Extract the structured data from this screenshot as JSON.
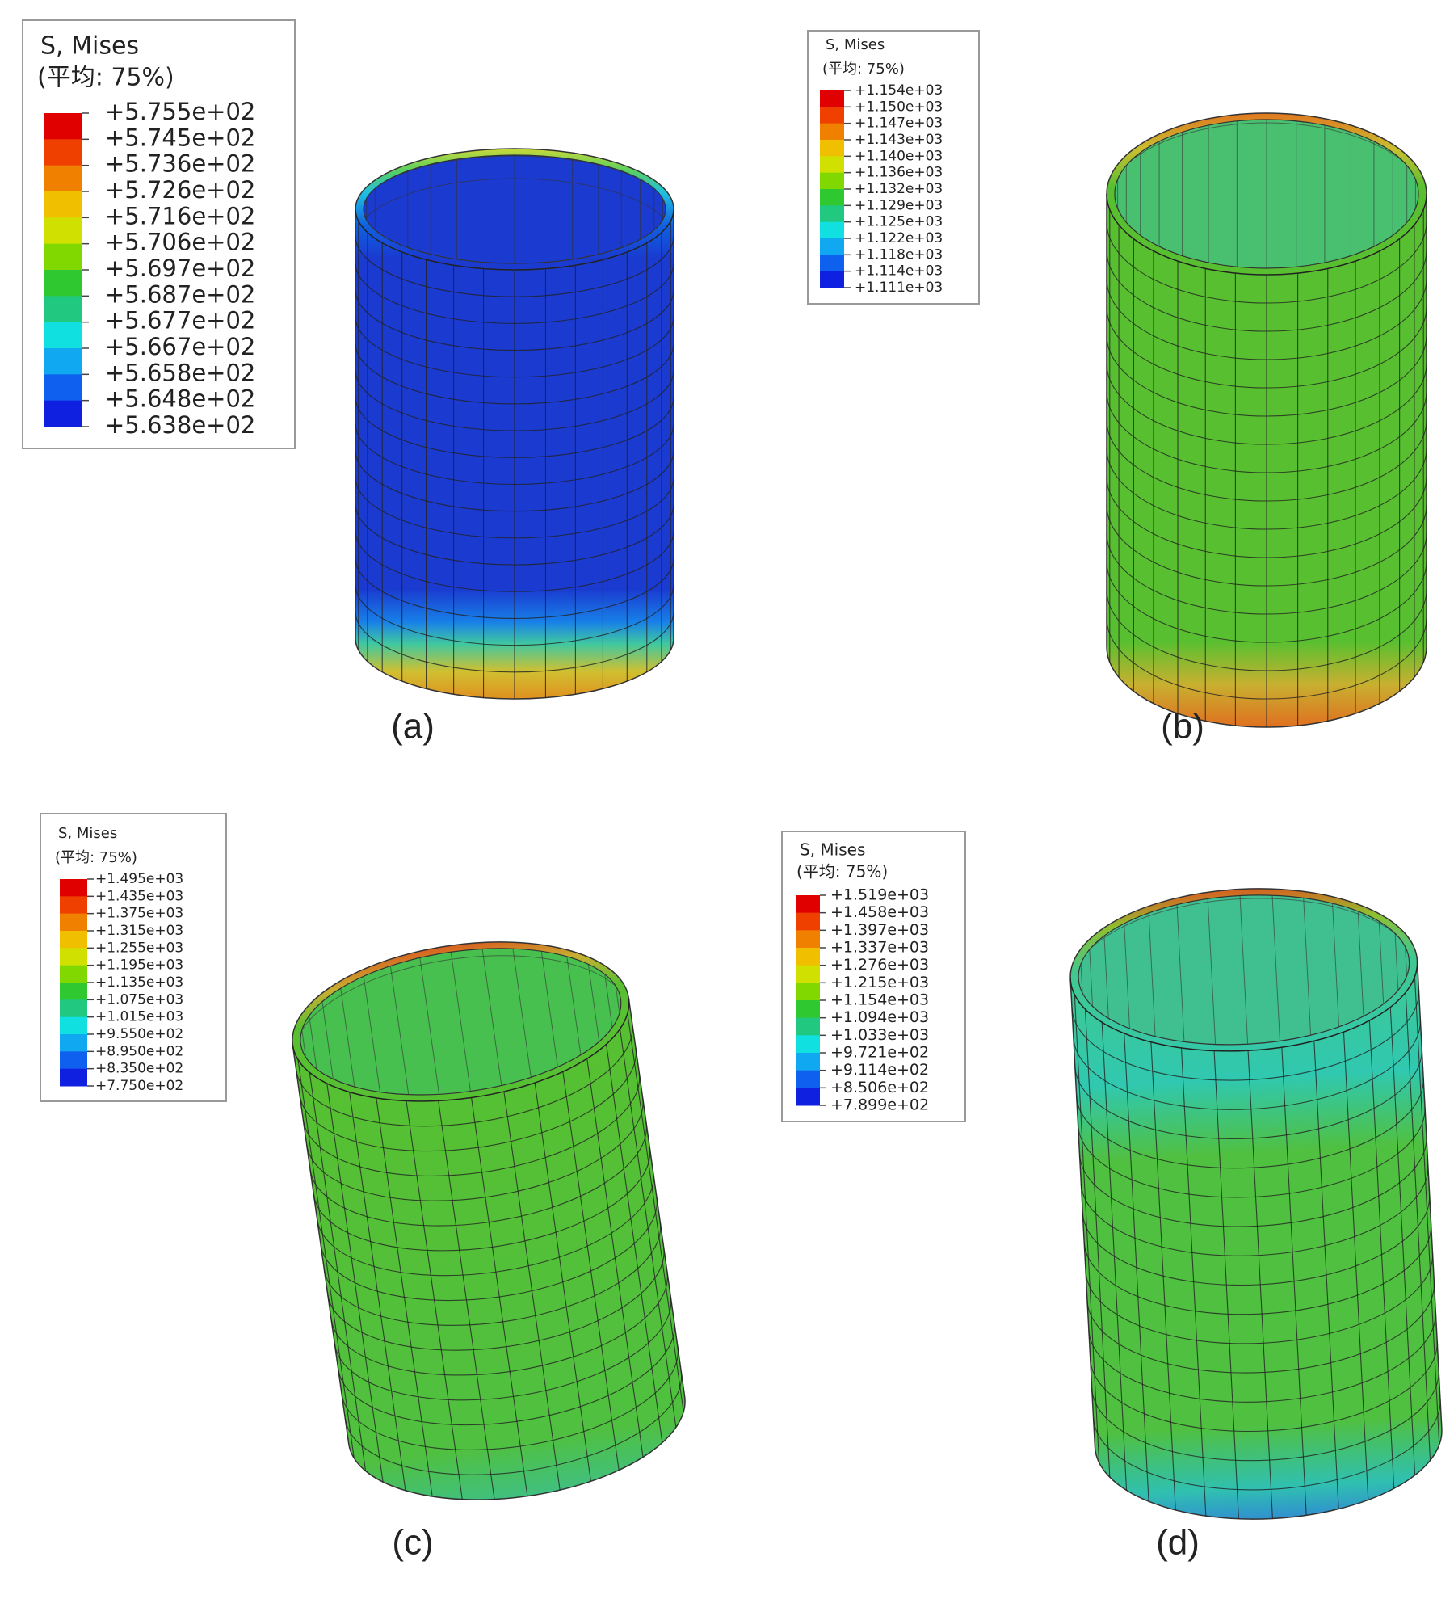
{
  "panels": [
    {
      "legend_title": "S, Mises",
      "legend_subtitle": "(平均: 75%)",
      "legend_values": [
        "+5.755e+02",
        "+5.745e+02",
        "+5.736e+02",
        "+5.726e+02",
        "+5.716e+02",
        "+5.706e+02",
        "+5.697e+02",
        "+5.687e+02",
        "+5.677e+02",
        "+5.667e+02",
        "+5.658e+02",
        "+5.648e+02",
        "+5.638e+02"
      ],
      "caption": "(a)"
    },
    {
      "legend_title": "S, Mises",
      "legend_subtitle": "(平均: 75%)",
      "legend_values": [
        "+1.154e+03",
        "+1.150e+03",
        "+1.147e+03",
        "+1.143e+03",
        "+1.140e+03",
        "+1.136e+03",
        "+1.132e+03",
        "+1.129e+03",
        "+1.125e+03",
        "+1.122e+03",
        "+1.118e+03",
        "+1.114e+03",
        "+1.111e+03"
      ],
      "caption": "(b)"
    },
    {
      "legend_title": "S, Mises",
      "legend_subtitle": "(平均: 75%)",
      "legend_values": [
        "+1.495e+03",
        "+1.435e+03",
        "+1.375e+03",
        "+1.315e+03",
        "+1.255e+03",
        "+1.195e+03",
        "+1.135e+03",
        "+1.075e+03",
        "+1.015e+03",
        "+9.550e+02",
        "+8.950e+02",
        "+8.350e+02",
        "+7.750e+02"
      ],
      "caption": "(c)"
    },
    {
      "legend_title": "S, Mises",
      "legend_subtitle": "(平均: 75%)",
      "legend_values": [
        "+1.519e+03",
        "+1.458e+03",
        "+1.397e+03",
        "+1.337e+03",
        "+1.276e+03",
        "+1.215e+03",
        "+1.154e+03",
        "+1.094e+03",
        "+1.033e+03",
        "+9.721e+02",
        "+9.114e+02",
        "+8.506e+02",
        "+7.899e+02"
      ],
      "caption": "(d)"
    }
  ]
}
